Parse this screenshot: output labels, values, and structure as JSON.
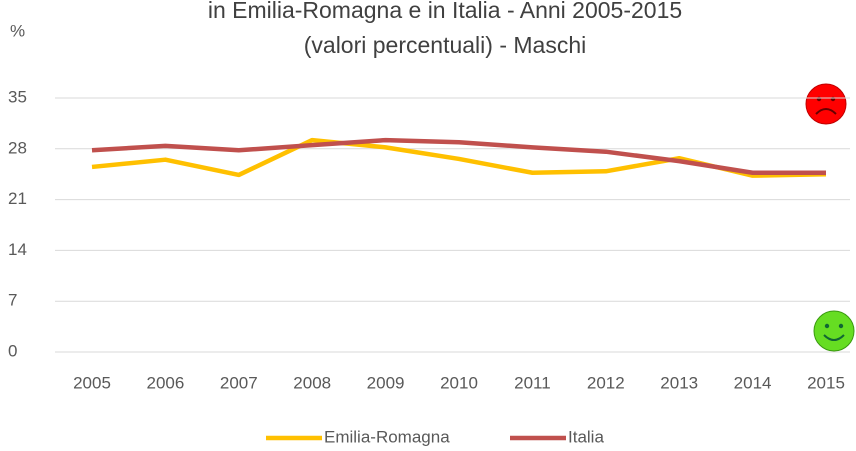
{
  "chart_data": {
    "type": "line",
    "title": "in Emilia-Romagna e in Italia - Anni 2005-2015",
    "subtitle": "(valori percentuali) - Maschi",
    "y_label": "%",
    "categories": [
      "2005",
      "2006",
      "2007",
      "2008",
      "2009",
      "2010",
      "2011",
      "2012",
      "2013",
      "2014",
      "2015"
    ],
    "series": [
      {
        "name": "Emilia-Romagna",
        "color": "#ffc000",
        "values": [
          25.5,
          26.5,
          24.4,
          29.2,
          28.2,
          26.6,
          24.7,
          24.9,
          26.7,
          24.3,
          24.5
        ]
      },
      {
        "name": "Italia",
        "color": "#c0504d",
        "values": [
          27.8,
          28.4,
          27.8,
          28.5,
          29.2,
          28.9,
          28.2,
          27.6,
          26.3,
          24.7,
          24.7
        ]
      }
    ],
    "ylim": [
      0,
      35
    ],
    "yticks": [
      0,
      7,
      14,
      21,
      28,
      35
    ],
    "grid": true,
    "legend": "bottom"
  }
}
